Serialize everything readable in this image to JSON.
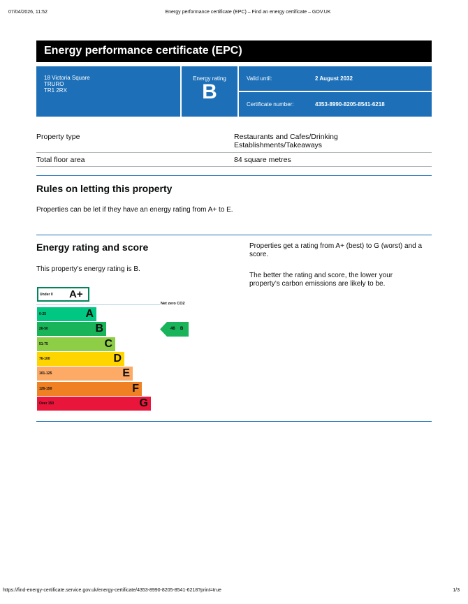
{
  "browser": {
    "datetime": "07/04/2026, 11:52",
    "page_title": "Energy performance certificate (EPC) – Find an energy certificate – GOV.UK",
    "url": "https://find-energy-certificate.service.gov.uk/energy-certificate/4353-8990-8205-8541-6218?print=true",
    "page_count": "1/3"
  },
  "title": "Energy performance certificate (EPC)",
  "address": [
    "18 Victoria Square",
    "TRURO",
    "TR1 2RX"
  ],
  "energy_rating": {
    "label": "Energy rating",
    "value": "B"
  },
  "valid_until": {
    "label": "Valid until:",
    "value": "2 August 2032"
  },
  "certificate_number": {
    "label": "Certificate number:",
    "value": "4353-8990-8205-8541-6218"
  },
  "property": [
    {
      "key": "Property type",
      "value": "Restaurants and Cafes/Drinking Establishments/Takeaways"
    },
    {
      "key": "Total floor area",
      "value": "84 square metres"
    }
  ],
  "rules": {
    "heading": "Rules on letting this property",
    "text": "Properties can be let if they have an energy rating from A+ to E."
  },
  "score": {
    "heading": "Energy rating and score",
    "text": "This property’s energy rating is B.",
    "info1": "Properties get a rating from A+ (best) to G (worst) and a score.",
    "info2": "The better the rating and score, the lower your property’s carbon emissions are likely to be."
  },
  "chart": {
    "aplus": {
      "range": "Under 0",
      "letter": "A+",
      "color": "#00855a"
    },
    "net_zero": "Net zero CO2",
    "bands": [
      {
        "range": "0-25",
        "letter": "A",
        "color": "#00c781"
      },
      {
        "range": "26-50",
        "letter": "B",
        "color": "#19b459"
      },
      {
        "range": "51-75",
        "letter": "C",
        "color": "#8dce46"
      },
      {
        "range": "76-100",
        "letter": "D",
        "color": "#ffd500"
      },
      {
        "range": "101-125",
        "letter": "E",
        "color": "#fcaa65"
      },
      {
        "range": "126-150",
        "letter": "F",
        "color": "#ef8023"
      },
      {
        "range": "Over 150",
        "letter": "G",
        "color": "#e9153b"
      }
    ],
    "current": {
      "score": "46",
      "letter": "B",
      "color": "#19b459"
    }
  }
}
